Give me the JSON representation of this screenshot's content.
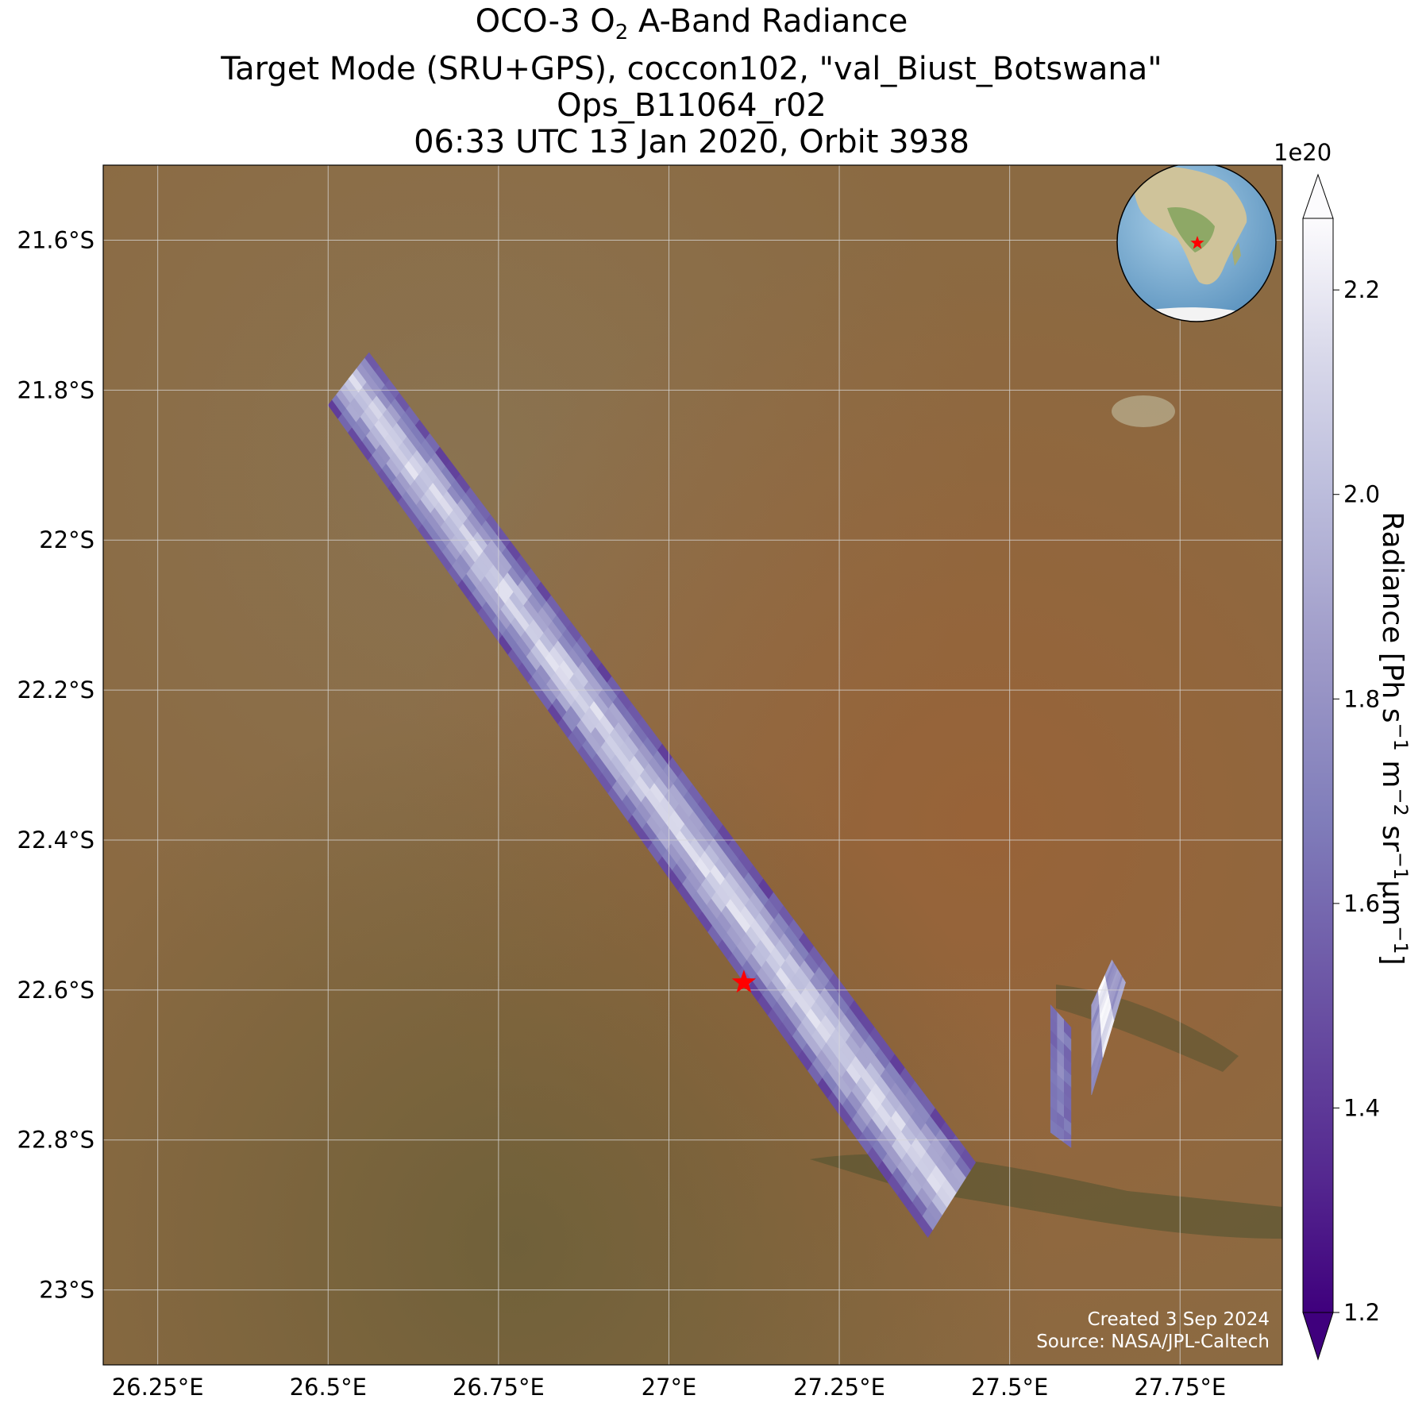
{
  "title": {
    "line1_pre": "OCO-3 O",
    "line1_sub": "2",
    "line1_post": " A-Band Radiance",
    "line2": "Target Mode (SRU+GPS), coccon102, \"val_Biust_Botswana\"",
    "line3": "Ops_B11064_r02",
    "line4": "06:33 UTC 13 Jan 2020, Orbit 3938"
  },
  "map": {
    "lon_range": [
      26.17,
      27.9
    ],
    "lat_range": [
      -23.1,
      -21.5
    ],
    "lon_ticks": [
      {
        "value": 26.25,
        "label": "26.25°E"
      },
      {
        "value": 26.5,
        "label": "26.5°E"
      },
      {
        "value": 26.75,
        "label": "26.75°E"
      },
      {
        "value": 27.0,
        "label": "27°E"
      },
      {
        "value": 27.25,
        "label": "27.25°E"
      },
      {
        "value": 27.5,
        "label": "27.5°E"
      },
      {
        "value": 27.75,
        "label": "27.75°E"
      }
    ],
    "lat_ticks": [
      {
        "value": -21.6,
        "label": "21.6°S"
      },
      {
        "value": -21.8,
        "label": "21.8°S"
      },
      {
        "value": -22.0,
        "label": "22°S"
      },
      {
        "value": -22.2,
        "label": "22.2°S"
      },
      {
        "value": -22.4,
        "label": "22.4°S"
      },
      {
        "value": -22.6,
        "label": "22.6°S"
      },
      {
        "value": -22.8,
        "label": "22.8°S"
      },
      {
        "value": -23.0,
        "label": "23°S"
      }
    ],
    "gridlines": true,
    "target_marker": {
      "lon": 27.11,
      "lat": -22.59,
      "color": "#ff0000",
      "symbol": "star"
    },
    "credit_line1": "Created 3 Sep 2024",
    "credit_line2": "Source: NASA/JPL-Caltech",
    "inset_globe": {
      "region": "Africa",
      "marker_color": "#ff0000"
    }
  },
  "colorbar": {
    "cmap": "Purples_r",
    "range": [
      1.2,
      2.27
    ],
    "exponent_label": "1e20",
    "ticks": [
      {
        "value": 1.2,
        "label": "1.2"
      },
      {
        "value": 1.4,
        "label": "1.4"
      },
      {
        "value": 1.6,
        "label": "1.6"
      },
      {
        "value": 1.8,
        "label": "1.8"
      },
      {
        "value": 2.0,
        "label": "2.0"
      },
      {
        "value": 2.2,
        "label": "2.2"
      }
    ],
    "label_prefix": "Radiance [Ph s",
    "label_mid1": " m",
    "label_mid2": " sr",
    "label_mid3": "μm",
    "label_suffix": "]",
    "sup_neg1": "−1",
    "sup_neg2": "−2",
    "extend": "both",
    "color_low": "#3f007d",
    "color_high": "#fcfbfd"
  },
  "chart_data": {
    "type": "heatmap",
    "title": "OCO-3 O2 A-Band Radiance",
    "value_units": "Ph s^-1 m^-2 sr^-1 μm^-1 (×1e20)",
    "swaths": [
      {
        "corners": [
          [
            26.5,
            -21.82
          ],
          [
            26.56,
            -21.75
          ],
          [
            27.45,
            -22.83
          ],
          [
            27.38,
            -22.93
          ]
        ],
        "edge_value": 1.35,
        "center_value": 2.15
      },
      {
        "corners": [
          [
            27.56,
            -22.62
          ],
          [
            27.59,
            -22.65
          ],
          [
            27.59,
            -22.81
          ],
          [
            27.56,
            -22.79
          ]
        ],
        "edge_value": 1.6,
        "center_value": 1.7
      },
      {
        "corners": [
          [
            27.62,
            -22.62
          ],
          [
            27.65,
            -22.56
          ],
          [
            27.67,
            -22.59
          ],
          [
            27.62,
            -22.74
          ]
        ],
        "edge_value": 1.5,
        "center_value": 2.2
      }
    ]
  }
}
